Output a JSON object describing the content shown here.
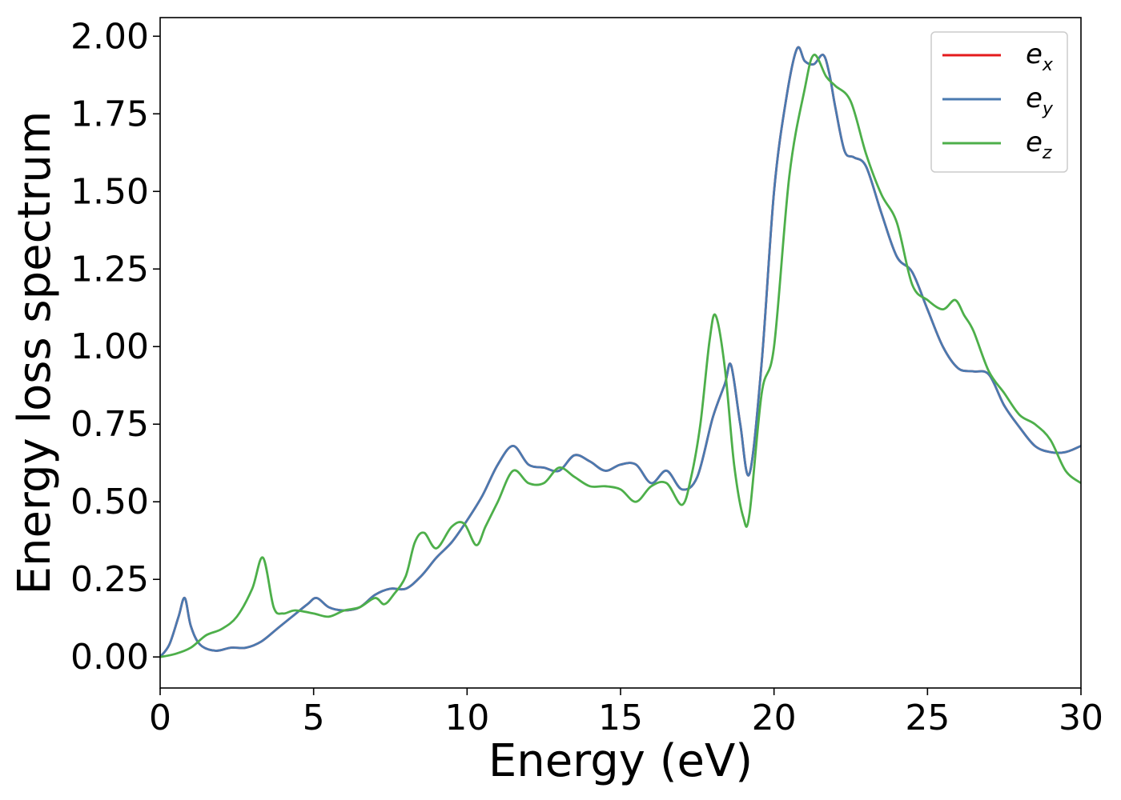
{
  "chart_data": {
    "type": "line",
    "title": "",
    "xlabel": "Energy (eV)",
    "ylabel": "Energy loss spectrum",
    "xlim": [
      0,
      30
    ],
    "ylim": [
      -0.1,
      2.06
    ],
    "xticks": [
      "0",
      "5",
      "10",
      "15",
      "20",
      "25",
      "30"
    ],
    "yticks": [
      "0.00",
      "0.25",
      "0.50",
      "0.75",
      "1.00",
      "1.25",
      "1.50",
      "1.75",
      "2.00"
    ],
    "grid": false,
    "legend_position": "top-right",
    "series": [
      {
        "name": "ex",
        "label_base": "e",
        "label_sub": "x",
        "color": "#e41a1c",
        "x": [
          0,
          0.3,
          0.6,
          0.8,
          1.0,
          1.3,
          1.8,
          2.3,
          2.8,
          3.3,
          3.8,
          4.3,
          4.8,
          5.1,
          5.5,
          6.0,
          6.5,
          7.0,
          7.5,
          8.0,
          8.5,
          9.0,
          9.5,
          10.0,
          10.5,
          11.0,
          11.5,
          12.0,
          12.5,
          13.0,
          13.5,
          14.0,
          14.5,
          15.0,
          15.5,
          16.0,
          16.5,
          17.0,
          17.5,
          18.0,
          18.4,
          18.6,
          18.9,
          19.2,
          19.6,
          20.0,
          20.4,
          20.75,
          21.0,
          21.3,
          21.6,
          21.8,
          22.0,
          22.3,
          22.6,
          23.0,
          23.5,
          24.0,
          24.5,
          25.0,
          25.5,
          26.0,
          26.5,
          27.0,
          27.5,
          28.0,
          28.5,
          29.0,
          29.5,
          30.0
        ],
        "values": [
          0.0,
          0.04,
          0.13,
          0.19,
          0.1,
          0.04,
          0.02,
          0.03,
          0.03,
          0.05,
          0.09,
          0.13,
          0.17,
          0.19,
          0.16,
          0.15,
          0.16,
          0.2,
          0.22,
          0.22,
          0.26,
          0.32,
          0.37,
          0.44,
          0.52,
          0.62,
          0.68,
          0.62,
          0.61,
          0.6,
          0.65,
          0.63,
          0.6,
          0.62,
          0.62,
          0.56,
          0.6,
          0.54,
          0.58,
          0.77,
          0.88,
          0.94,
          0.75,
          0.59,
          0.95,
          1.5,
          1.8,
          1.96,
          1.92,
          1.91,
          1.94,
          1.88,
          1.77,
          1.63,
          1.61,
          1.58,
          1.43,
          1.29,
          1.24,
          1.12,
          1.0,
          0.93,
          0.92,
          0.91,
          0.81,
          0.74,
          0.68,
          0.66,
          0.66,
          0.68
        ]
      },
      {
        "name": "ey",
        "label_base": "e",
        "label_sub": "y",
        "color": "#4a7ab0",
        "x": [
          0,
          0.3,
          0.6,
          0.8,
          1.0,
          1.3,
          1.8,
          2.3,
          2.8,
          3.3,
          3.8,
          4.3,
          4.8,
          5.1,
          5.5,
          6.0,
          6.5,
          7.0,
          7.5,
          8.0,
          8.5,
          9.0,
          9.5,
          10.0,
          10.5,
          11.0,
          11.5,
          12.0,
          12.5,
          13.0,
          13.5,
          14.0,
          14.5,
          15.0,
          15.5,
          16.0,
          16.5,
          17.0,
          17.5,
          18.0,
          18.4,
          18.6,
          18.9,
          19.2,
          19.6,
          20.0,
          20.4,
          20.75,
          21.0,
          21.3,
          21.6,
          21.8,
          22.0,
          22.3,
          22.6,
          23.0,
          23.5,
          24.0,
          24.5,
          25.0,
          25.5,
          26.0,
          26.5,
          27.0,
          27.5,
          28.0,
          28.5,
          29.0,
          29.5,
          30.0
        ],
        "values": [
          0.0,
          0.04,
          0.13,
          0.19,
          0.1,
          0.04,
          0.02,
          0.03,
          0.03,
          0.05,
          0.09,
          0.13,
          0.17,
          0.19,
          0.16,
          0.15,
          0.16,
          0.2,
          0.22,
          0.22,
          0.26,
          0.32,
          0.37,
          0.44,
          0.52,
          0.62,
          0.68,
          0.62,
          0.61,
          0.6,
          0.65,
          0.63,
          0.6,
          0.62,
          0.62,
          0.56,
          0.6,
          0.54,
          0.58,
          0.77,
          0.88,
          0.94,
          0.75,
          0.59,
          0.95,
          1.5,
          1.8,
          1.96,
          1.92,
          1.91,
          1.94,
          1.88,
          1.77,
          1.63,
          1.61,
          1.58,
          1.43,
          1.29,
          1.24,
          1.12,
          1.0,
          0.93,
          0.92,
          0.91,
          0.81,
          0.74,
          0.68,
          0.66,
          0.66,
          0.68
        ]
      },
      {
        "name": "ez",
        "label_base": "e",
        "label_sub": "z",
        "color": "#4daf4a",
        "x": [
          0,
          0.5,
          1.0,
          1.5,
          2.0,
          2.5,
          3.0,
          3.35,
          3.7,
          4.0,
          4.4,
          5.0,
          5.5,
          6.0,
          6.5,
          7.0,
          7.3,
          7.6,
          8.0,
          8.3,
          8.6,
          9.0,
          9.5,
          9.9,
          10.3,
          10.6,
          11.0,
          11.5,
          12.0,
          12.5,
          13.0,
          13.5,
          14.0,
          14.5,
          15.0,
          15.5,
          16.0,
          16.5,
          17.0,
          17.3,
          17.6,
          17.9,
          18.1,
          18.4,
          18.7,
          19.0,
          19.2,
          19.6,
          20.0,
          20.5,
          21.0,
          21.3,
          21.7,
          22.0,
          22.5,
          23.0,
          23.5,
          24.0,
          24.5,
          25.0,
          25.5,
          25.9,
          26.2,
          26.5,
          27.0,
          27.5,
          28.0,
          28.5,
          29.0,
          29.5,
          30.0
        ],
        "values": [
          0.0,
          0.01,
          0.03,
          0.07,
          0.09,
          0.13,
          0.22,
          0.32,
          0.16,
          0.14,
          0.15,
          0.14,
          0.13,
          0.15,
          0.16,
          0.19,
          0.17,
          0.2,
          0.26,
          0.37,
          0.4,
          0.35,
          0.42,
          0.43,
          0.36,
          0.42,
          0.5,
          0.6,
          0.56,
          0.56,
          0.61,
          0.58,
          0.55,
          0.55,
          0.54,
          0.5,
          0.55,
          0.56,
          0.49,
          0.58,
          0.75,
          1.02,
          1.1,
          0.93,
          0.62,
          0.45,
          0.46,
          0.85,
          1.0,
          1.55,
          1.83,
          1.94,
          1.87,
          1.84,
          1.79,
          1.62,
          1.49,
          1.4,
          1.2,
          1.15,
          1.12,
          1.15,
          1.1,
          1.05,
          0.92,
          0.85,
          0.78,
          0.75,
          0.7,
          0.6,
          0.56
        ]
      }
    ]
  }
}
